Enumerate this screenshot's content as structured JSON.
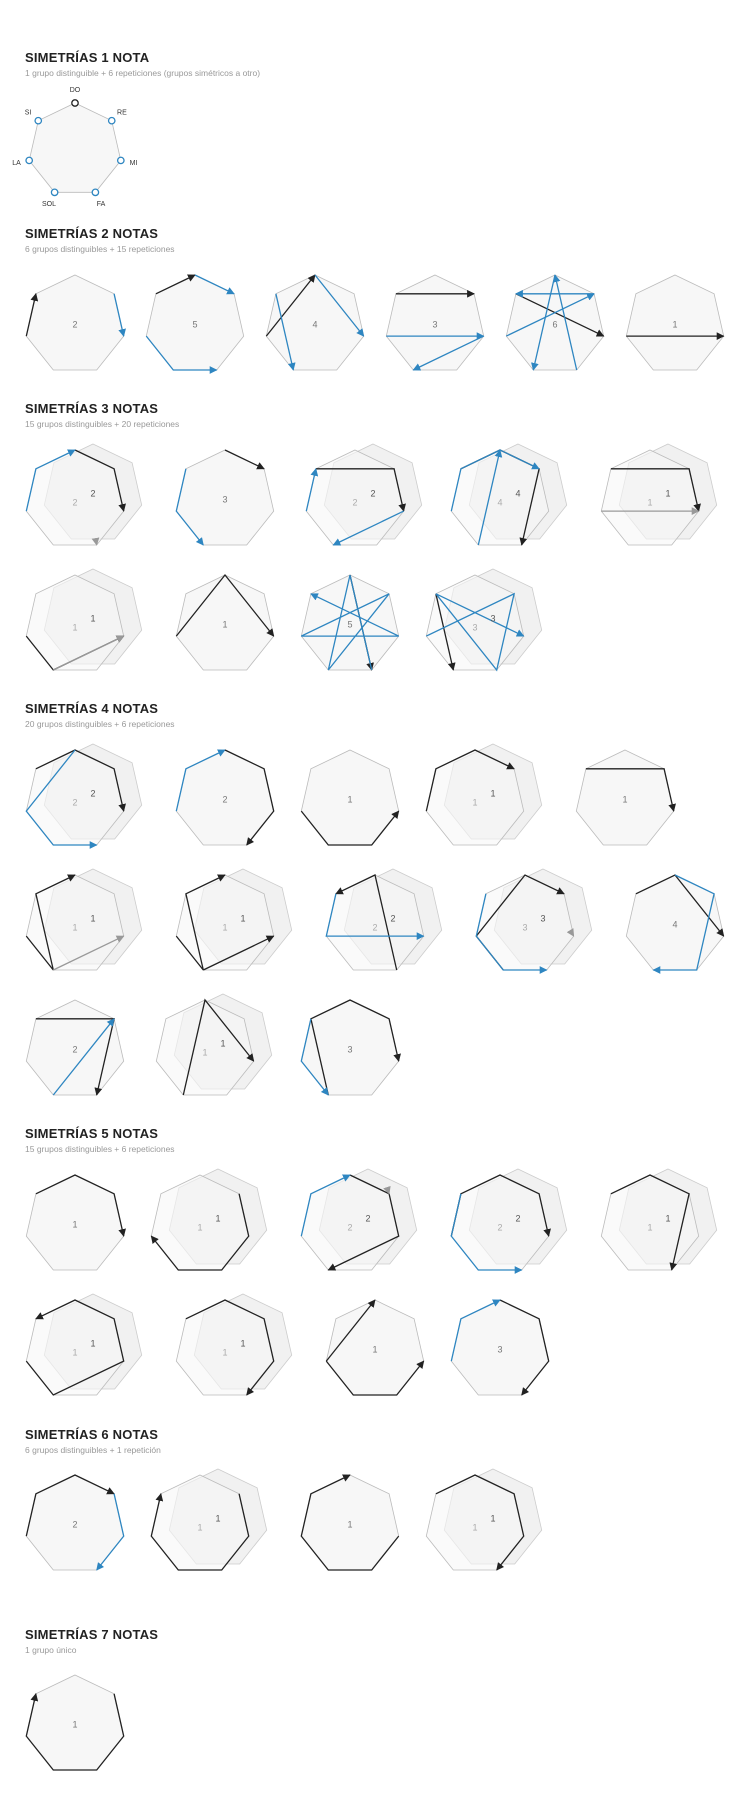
{
  "colors": {
    "dark": "#222222",
    "blue": "#2e86c1",
    "gray": "#999999",
    "outline": "#bbbbbb",
    "fill": "#f7f7f7"
  },
  "reference": {
    "notes": [
      "DO",
      "RE",
      "MI",
      "FA",
      "SOL",
      "LA",
      "SI"
    ]
  },
  "sections": [
    {
      "title": "SIMETRÍAS 1 NOTA",
      "subtitle": "1 grupo distinguible + 6 repeticiones (grupos simétricos a otro)",
      "labels": []
    },
    {
      "title": "SIMETRÍAS 2 NOTAS",
      "subtitle": "6 grupos distinguibles + 15 repeticiones",
      "labels": [
        "2",
        "5",
        "4",
        "3",
        "6",
        "1"
      ]
    },
    {
      "title": "SIMETRÍAS 3 NOTAS",
      "subtitle": "15 grupos distinguibles + 20 repeticiones",
      "labels": [
        "2",
        "3",
        "2",
        "4",
        "1",
        "1",
        "1",
        "5",
        "3"
      ]
    },
    {
      "title": "SIMETRÍAS 4 NOTAS",
      "subtitle": "20 grupos distinguibles + 6 repeticiones",
      "labels": [
        "2",
        "2",
        "1",
        "1",
        "1",
        "1",
        "1",
        "2",
        "3",
        "4",
        "2",
        "1",
        "3"
      ]
    },
    {
      "title": "SIMETRÍAS 5 NOTAS",
      "subtitle": "15 grupos distinguibles + 6 repeticiones",
      "labels": [
        "1",
        "1",
        "2",
        "2",
        "1",
        "1",
        "1",
        "1",
        "3"
      ]
    },
    {
      "title": "SIMETRÍAS 6 NOTAS",
      "subtitle": "6 grupos distinguibles + 1 repetición",
      "labels": [
        "2",
        "1",
        "1",
        "1"
      ]
    },
    {
      "title": "SIMETRÍAS 7 NOTAS",
      "subtitle": "1 grupo único",
      "labels": [
        "1"
      ]
    }
  ]
}
